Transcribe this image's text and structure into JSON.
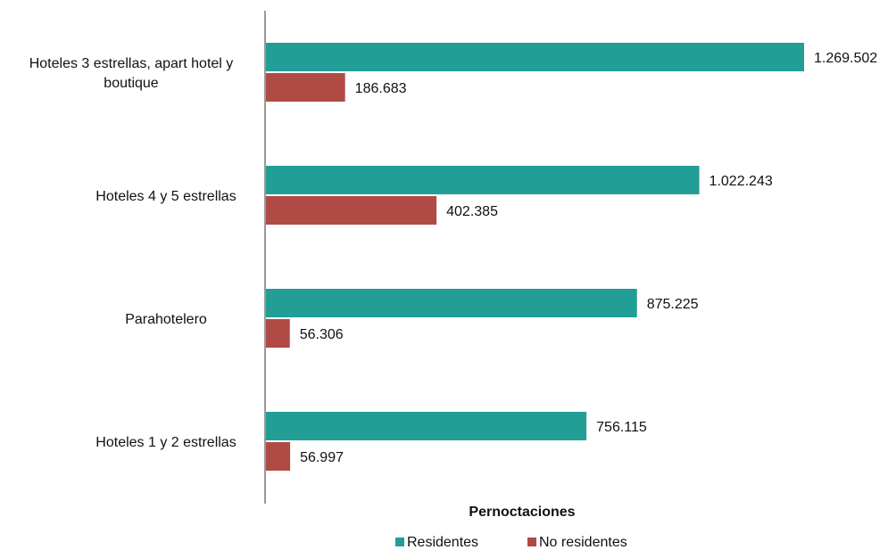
{
  "chart_data": {
    "type": "bar",
    "orientation": "horizontal",
    "categories": [
      [
        "Hoteles 3 estrellas, apart hotel y",
        "boutique"
      ],
      [
        "Hoteles 4 y 5 estrellas"
      ],
      [
        "Parahotelero"
      ],
      [
        "Hoteles 1 y 2 estrellas"
      ]
    ],
    "series": [
      {
        "name": "Residentes",
        "color": "#229E96",
        "values": [
          1269502,
          1022243,
          875225,
          756115
        ],
        "labels": [
          "1.269.502",
          "1.022.243",
          "875.225",
          "756.115"
        ]
      },
      {
        "name": "No residentes",
        "color": "#B04A45",
        "values": [
          186683,
          402385,
          56306,
          56997
        ],
        "labels": [
          "186.683",
          "402.385",
          "56.306",
          "56.997"
        ]
      }
    ],
    "xlabel": "Pernoctaciones",
    "xlim": [
      0,
      1300000
    ],
    "grid": false,
    "legend_position": "bottom-center"
  }
}
